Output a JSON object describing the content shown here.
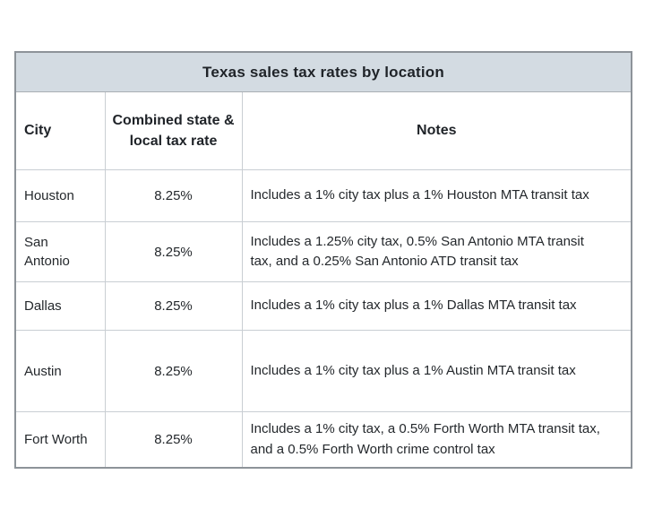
{
  "chart_data": {
    "type": "table",
    "title": "Texas sales tax rates by location",
    "columns": [
      "City",
      "Combined state & local tax rate",
      "Notes"
    ],
    "rows": [
      [
        "Houston",
        "8.25%",
        "Includes a 1% city tax plus a 1% Houston MTA transit tax"
      ],
      [
        "San Antonio",
        "8.25%",
        "Includes a 1.25% city tax, 0.5% San Antonio MTA transit tax, and a 0.25% San Antonio ATD transit tax"
      ],
      [
        "Dallas",
        "8.25%",
        "Includes a 1% city tax plus a 1% Dallas MTA transit tax"
      ],
      [
        "Austin",
        "8.25%",
        "Includes a 1% city tax plus a 1% Austin MTA transit tax"
      ],
      [
        "Fort Worth",
        "8.25%",
        "Includes a 1% city tax, a 0.5% Forth Worth MTA transit tax, and a 0.5% Forth Worth crime control tax"
      ]
    ],
    "layout_hints": {
      "title_row_background": "#d3dbe2",
      "body_background": "#ffffff",
      "outer_border_color": "#8d9399",
      "inner_border_color": "#c9ced3",
      "text_color": "#24282c",
      "rate_column_alignment": "center",
      "city_column_alignment": "left",
      "notes_column_alignment": "left"
    }
  }
}
